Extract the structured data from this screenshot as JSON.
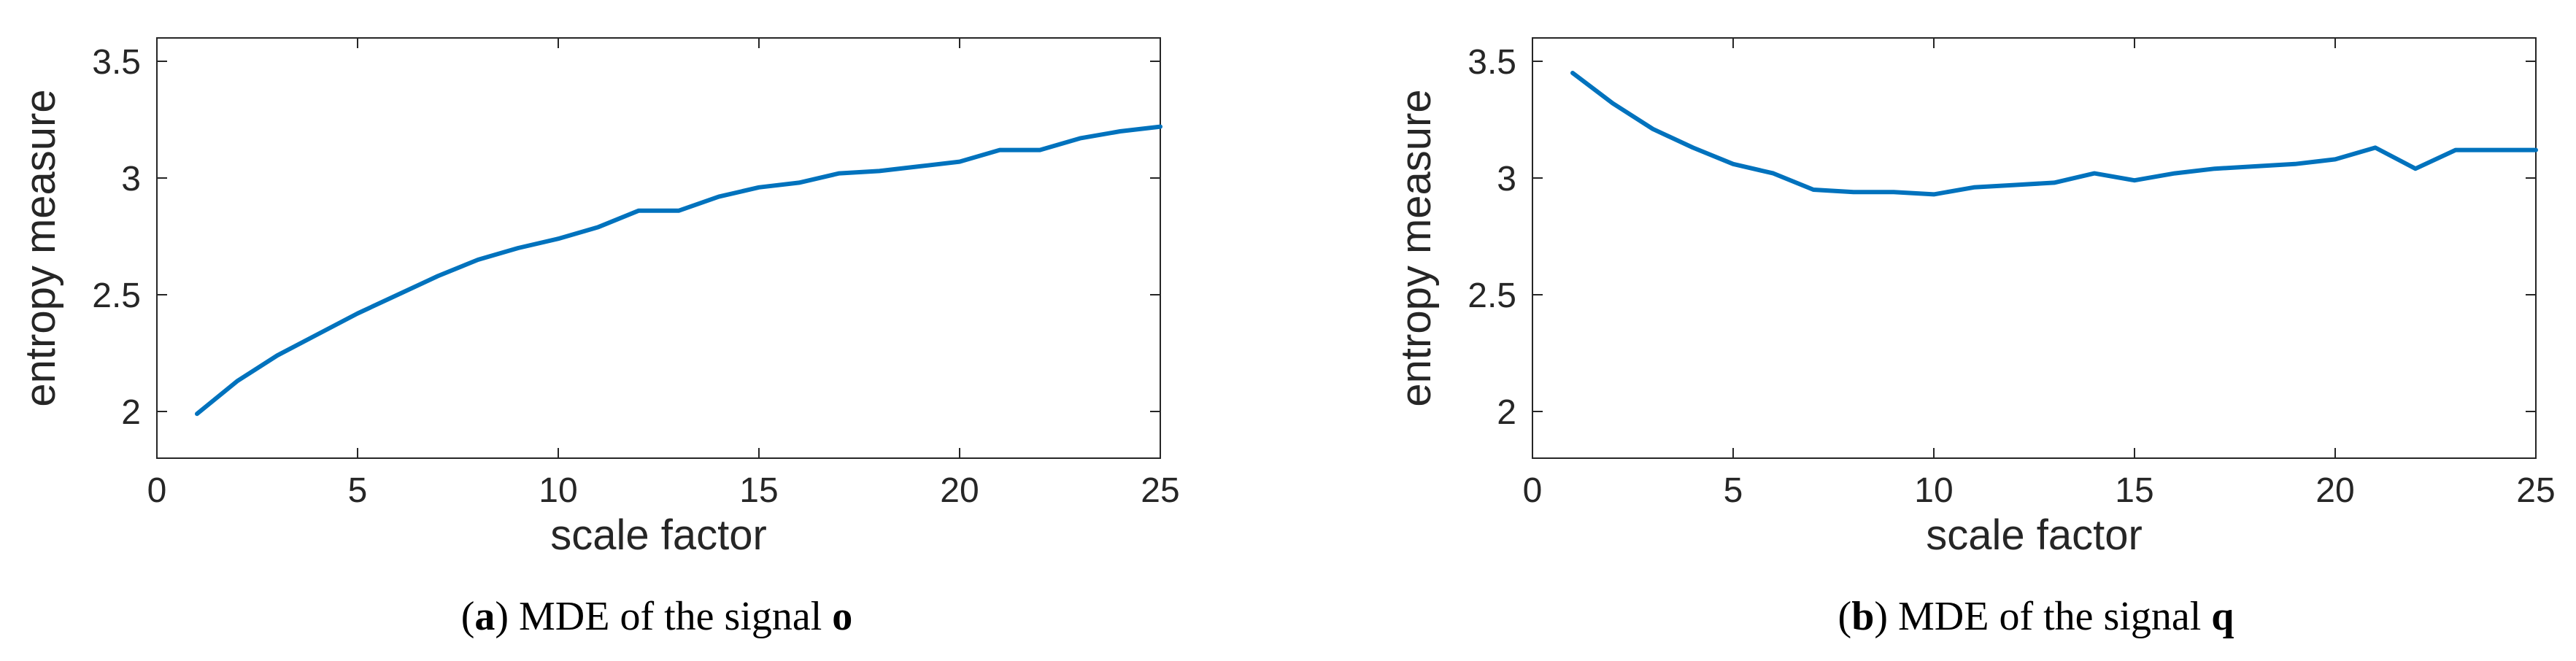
{
  "chart_data": [
    {
      "type": "line",
      "xlabel": "scale factor",
      "ylabel": "entropy measure",
      "xlim": [
        0,
        25
      ],
      "ylim": [
        1.8,
        3.6
      ],
      "xticks": [
        0,
        5,
        10,
        15,
        20,
        25
      ],
      "yticks": [
        2,
        2.5,
        3,
        3.5
      ],
      "xtick_labels": [
        "0",
        "5",
        "10",
        "15",
        "20",
        "25"
      ],
      "ytick_labels": [
        "2",
        "2.5",
        "3",
        "3.5"
      ],
      "grid": false,
      "line_color": "#0072BD",
      "caption": {
        "label": "a",
        "text": "MDE of the signal",
        "symbol": "o"
      },
      "series": [
        {
          "x": [
            1,
            2,
            3,
            4,
            5,
            6,
            7,
            8,
            9,
            10,
            11,
            12,
            13,
            14,
            15,
            16,
            17,
            18,
            19,
            20,
            21,
            22,
            23,
            24,
            25
          ],
          "values": [
            1.99,
            2.13,
            2.24,
            2.33,
            2.42,
            2.5,
            2.58,
            2.65,
            2.7,
            2.74,
            2.79,
            2.86,
            2.86,
            2.92,
            2.96,
            2.98,
            3.02,
            3.03,
            3.05,
            3.07,
            3.12,
            3.12,
            3.17,
            3.2,
            3.22
          ]
        }
      ]
    },
    {
      "type": "line",
      "xlabel": "scale factor",
      "ylabel": "entropy measure",
      "xlim": [
        0,
        25
      ],
      "ylim": [
        1.8,
        3.6
      ],
      "xticks": [
        0,
        5,
        10,
        15,
        20,
        25
      ],
      "yticks": [
        2,
        2.5,
        3,
        3.5
      ],
      "xtick_labels": [
        "0",
        "5",
        "10",
        "15",
        "20",
        "25"
      ],
      "ytick_labels": [
        "2",
        "2.5",
        "3",
        "3.5"
      ],
      "grid": false,
      "line_color": "#0072BD",
      "caption": {
        "label": "b",
        "text": "MDE of the signal",
        "symbol": "q"
      },
      "series": [
        {
          "x": [
            1,
            2,
            3,
            4,
            5,
            6,
            7,
            8,
            9,
            10,
            11,
            12,
            13,
            14,
            15,
            16,
            17,
            18,
            19,
            20,
            21,
            22,
            23,
            24,
            25
          ],
          "values": [
            3.45,
            3.32,
            3.21,
            3.13,
            3.06,
            3.02,
            2.95,
            2.94,
            2.94,
            2.93,
            2.96,
            2.97,
            2.98,
            3.02,
            2.99,
            3.02,
            3.04,
            3.05,
            3.06,
            3.08,
            3.13,
            3.04,
            3.12,
            3.12,
            3.12
          ]
        }
      ]
    }
  ]
}
